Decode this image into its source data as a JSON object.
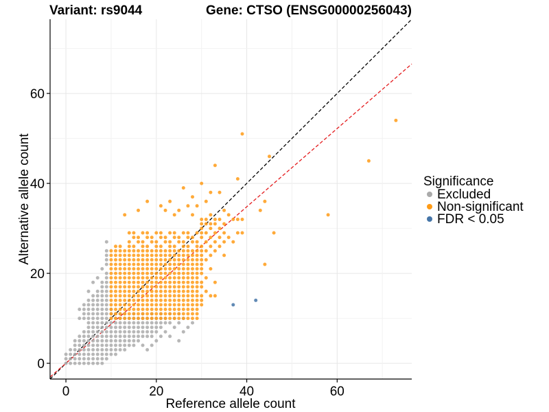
{
  "chart_data": {
    "type": "scatter",
    "title_left": "Variant: rs9044",
    "title_right": "Gene: CTSO (ENSG00000256043)",
    "xlabel": "Reference allele count",
    "ylabel": "Alternative allele count",
    "xlim": [
      -3.5,
      76.5
    ],
    "ylim": [
      -3.5,
      76.5
    ],
    "x_ticks": [
      0,
      20,
      40,
      60
    ],
    "y_ticks": [
      0,
      20,
      40,
      60
    ],
    "grid": true,
    "legend_placement": "right",
    "legend_title": "Significance",
    "reference_lines": [
      {
        "kind": "identity",
        "slope": 1,
        "intercept": 0,
        "color": "#000000",
        "style": "dashed"
      },
      {
        "kind": "fit",
        "slope": 0.87,
        "intercept": 0,
        "color": "#e41a1c",
        "style": "dashed"
      }
    ],
    "series": [
      {
        "name": "Excluded",
        "color": "#aaaaaa",
        "points": [
          [
            0,
            0
          ],
          [
            1,
            0
          ],
          [
            2,
            0
          ],
          [
            3,
            0
          ],
          [
            4,
            0
          ],
          [
            5,
            0
          ],
          [
            6,
            0
          ],
          [
            7,
            0
          ],
          [
            8,
            0
          ],
          [
            0,
            1
          ],
          [
            1,
            1
          ],
          [
            2,
            1
          ],
          [
            3,
            1
          ],
          [
            4,
            1
          ],
          [
            5,
            1
          ],
          [
            6,
            1
          ],
          [
            7,
            1
          ],
          [
            8,
            1
          ],
          [
            9,
            1
          ],
          [
            0,
            2
          ],
          [
            1,
            2
          ],
          [
            2,
            2
          ],
          [
            3,
            2
          ],
          [
            4,
            2
          ],
          [
            5,
            2
          ],
          [
            6,
            2
          ],
          [
            7,
            2
          ],
          [
            8,
            2
          ],
          [
            9,
            2
          ],
          [
            10,
            2
          ],
          [
            11,
            2
          ],
          [
            1,
            3
          ],
          [
            2,
            3
          ],
          [
            3,
            3
          ],
          [
            4,
            3
          ],
          [
            5,
            3
          ],
          [
            6,
            3
          ],
          [
            7,
            3
          ],
          [
            8,
            3
          ],
          [
            9,
            3
          ],
          [
            10,
            3
          ],
          [
            11,
            3
          ],
          [
            12,
            3
          ],
          [
            13,
            3
          ],
          [
            18,
            3
          ],
          [
            2,
            4
          ],
          [
            3,
            4
          ],
          [
            4,
            4
          ],
          [
            5,
            4
          ],
          [
            6,
            4
          ],
          [
            7,
            4
          ],
          [
            8,
            4
          ],
          [
            9,
            4
          ],
          [
            10,
            4
          ],
          [
            11,
            4
          ],
          [
            12,
            4
          ],
          [
            13,
            4
          ],
          [
            14,
            4
          ],
          [
            15,
            4
          ],
          [
            17,
            4
          ],
          [
            19,
            4
          ],
          [
            2,
            5
          ],
          [
            3,
            5
          ],
          [
            4,
            5
          ],
          [
            5,
            5
          ],
          [
            6,
            5
          ],
          [
            7,
            5
          ],
          [
            8,
            5
          ],
          [
            9,
            5
          ],
          [
            10,
            5
          ],
          [
            11,
            5
          ],
          [
            12,
            5
          ],
          [
            13,
            5
          ],
          [
            14,
            5
          ],
          [
            15,
            5
          ],
          [
            16,
            5
          ],
          [
            20,
            5
          ],
          [
            25,
            5
          ],
          [
            3,
            6
          ],
          [
            4,
            6
          ],
          [
            5,
            6
          ],
          [
            6,
            6
          ],
          [
            7,
            6
          ],
          [
            8,
            6
          ],
          [
            9,
            6
          ],
          [
            10,
            6
          ],
          [
            11,
            6
          ],
          [
            12,
            6
          ],
          [
            13,
            6
          ],
          [
            14,
            6
          ],
          [
            15,
            6
          ],
          [
            16,
            6
          ],
          [
            17,
            6
          ],
          [
            18,
            6
          ],
          [
            19,
            6
          ],
          [
            21,
            6
          ],
          [
            23,
            6
          ],
          [
            4,
            7
          ],
          [
            5,
            7
          ],
          [
            6,
            7
          ],
          [
            7,
            7
          ],
          [
            8,
            7
          ],
          [
            9,
            7
          ],
          [
            10,
            7
          ],
          [
            11,
            7
          ],
          [
            12,
            7
          ],
          [
            13,
            7
          ],
          [
            14,
            7
          ],
          [
            15,
            7
          ],
          [
            16,
            7
          ],
          [
            17,
            7
          ],
          [
            18,
            7
          ],
          [
            19,
            7
          ],
          [
            20,
            7
          ],
          [
            22,
            7
          ],
          [
            26,
            7
          ],
          [
            5,
            8
          ],
          [
            6,
            8
          ],
          [
            7,
            8
          ],
          [
            8,
            8
          ],
          [
            9,
            8
          ],
          [
            10,
            8
          ],
          [
            11,
            8
          ],
          [
            12,
            8
          ],
          [
            13,
            8
          ],
          [
            14,
            8
          ],
          [
            15,
            8
          ],
          [
            16,
            8
          ],
          [
            17,
            8
          ],
          [
            18,
            8
          ],
          [
            19,
            8
          ],
          [
            20,
            8
          ],
          [
            21,
            8
          ],
          [
            24,
            8
          ],
          [
            27,
            8
          ],
          [
            5,
            9
          ],
          [
            6,
            9
          ],
          [
            7,
            9
          ],
          [
            8,
            9
          ],
          [
            9,
            9
          ],
          [
            10,
            9
          ],
          [
            11,
            9
          ],
          [
            12,
            9
          ],
          [
            13,
            9
          ],
          [
            14,
            9
          ],
          [
            15,
            9
          ],
          [
            16,
            9
          ],
          [
            17,
            9
          ],
          [
            18,
            9
          ],
          [
            19,
            9
          ],
          [
            20,
            9
          ],
          [
            21,
            9
          ],
          [
            22,
            9
          ],
          [
            23,
            9
          ],
          [
            25,
            9
          ],
          [
            28,
            9
          ],
          [
            3,
            10
          ],
          [
            4,
            10
          ],
          [
            5,
            10
          ],
          [
            6,
            10
          ],
          [
            7,
            10
          ],
          [
            8,
            10
          ],
          [
            9,
            10
          ],
          [
            10,
            10
          ],
          [
            11,
            10
          ],
          [
            12,
            10
          ],
          [
            13,
            10
          ],
          [
            14,
            10
          ],
          [
            15,
            10
          ],
          [
            16,
            10
          ],
          [
            17,
            10
          ],
          [
            18,
            10
          ],
          [
            19,
            10
          ],
          [
            20,
            10
          ],
          [
            21,
            10
          ],
          [
            22,
            10
          ],
          [
            24,
            10
          ],
          [
            26,
            10
          ],
          [
            4,
            11
          ],
          [
            5,
            11
          ],
          [
            6,
            11
          ],
          [
            7,
            11
          ],
          [
            8,
            11
          ],
          [
            9,
            11
          ],
          [
            10,
            11
          ],
          [
            11,
            11
          ],
          [
            12,
            11
          ],
          [
            13,
            11
          ],
          [
            15,
            11
          ],
          [
            17,
            11
          ],
          [
            19,
            11
          ],
          [
            21,
            11
          ],
          [
            23,
            11
          ],
          [
            25,
            11
          ],
          [
            3,
            12
          ],
          [
            4,
            12
          ],
          [
            5,
            12
          ],
          [
            6,
            12
          ],
          [
            7,
            12
          ],
          [
            8,
            12
          ],
          [
            9,
            12
          ],
          [
            10,
            12
          ],
          [
            4,
            13
          ],
          [
            5,
            13
          ],
          [
            6,
            13
          ],
          [
            7,
            13
          ],
          [
            8,
            13
          ],
          [
            9,
            13
          ],
          [
            5,
            14
          ],
          [
            6,
            14
          ],
          [
            7,
            14
          ],
          [
            8,
            14
          ],
          [
            9,
            14
          ],
          [
            6,
            15
          ],
          [
            7,
            15
          ],
          [
            8,
            15
          ],
          [
            9,
            15
          ],
          [
            5,
            16
          ],
          [
            7,
            16
          ],
          [
            8,
            16
          ],
          [
            9,
            16
          ],
          [
            8,
            17
          ],
          [
            9,
            17
          ],
          [
            6,
            18
          ],
          [
            8,
            18
          ],
          [
            9,
            18
          ],
          [
            7,
            19
          ],
          [
            9,
            19
          ],
          [
            9,
            20
          ],
          [
            8,
            21
          ],
          [
            9,
            22
          ],
          [
            9,
            23
          ],
          [
            9,
            24
          ],
          [
            9,
            25
          ],
          [
            9,
            27
          ]
        ]
      },
      {
        "name": "Non-significant",
        "color": "#ff9b16",
        "points": [],
        "grid_block": {
          "x_min": 10,
          "x_max": 29,
          "y_min": 10,
          "y_max": 29
        },
        "extra_points": [
          [
            39,
            51
          ],
          [
            45,
            46
          ],
          [
            33,
            44
          ],
          [
            38,
            41
          ],
          [
            30,
            40
          ],
          [
            26,
            39
          ],
          [
            32,
            38
          ],
          [
            34,
            38
          ],
          [
            28,
            37
          ],
          [
            18,
            36
          ],
          [
            23,
            36
          ],
          [
            31,
            36
          ],
          [
            21,
            35
          ],
          [
            27,
            35
          ],
          [
            29,
            35
          ],
          [
            16,
            34
          ],
          [
            22,
            34
          ],
          [
            25,
            34
          ],
          [
            35,
            34
          ],
          [
            43,
            34
          ],
          [
            44,
            36
          ],
          [
            13,
            33
          ],
          [
            24,
            33
          ],
          [
            28,
            33
          ],
          [
            32,
            33
          ],
          [
            36,
            33
          ],
          [
            30,
            32
          ],
          [
            31,
            32
          ],
          [
            33,
            32
          ],
          [
            34,
            32
          ],
          [
            37,
            32
          ],
          [
            38,
            32
          ],
          [
            39,
            32
          ],
          [
            30,
            31
          ],
          [
            31,
            31
          ],
          [
            32,
            31
          ],
          [
            33,
            31
          ],
          [
            35,
            31
          ],
          [
            30,
            30
          ],
          [
            32,
            30
          ],
          [
            34,
            30
          ],
          [
            30,
            29
          ],
          [
            31,
            29
          ],
          [
            33,
            29
          ],
          [
            35,
            29
          ],
          [
            38,
            29
          ],
          [
            39,
            29
          ],
          [
            46,
            29
          ],
          [
            30,
            28
          ],
          [
            32,
            28
          ],
          [
            34,
            28
          ],
          [
            36,
            28
          ],
          [
            31,
            27
          ],
          [
            33,
            27
          ],
          [
            35,
            27
          ],
          [
            37,
            27
          ],
          [
            30,
            26
          ],
          [
            32,
            26
          ],
          [
            34,
            26
          ],
          [
            30,
            25
          ],
          [
            31,
            25
          ],
          [
            33,
            25
          ],
          [
            30,
            24
          ],
          [
            32,
            24
          ],
          [
            35,
            24
          ],
          [
            30,
            23
          ],
          [
            31,
            23
          ],
          [
            30,
            22
          ],
          [
            44,
            22
          ],
          [
            30,
            21
          ],
          [
            32,
            21
          ],
          [
            30,
            20
          ],
          [
            31,
            19
          ],
          [
            30,
            18
          ],
          [
            33,
            18
          ],
          [
            30,
            17
          ],
          [
            31,
            16
          ],
          [
            30,
            15
          ],
          [
            32,
            15
          ],
          [
            30,
            14
          ],
          [
            30,
            13
          ],
          [
            33,
            15
          ],
          [
            58,
            33
          ],
          [
            67,
            45
          ],
          [
            73,
            54
          ]
        ]
      },
      {
        "name": "FDR < 0.05",
        "color": "#4575a8",
        "points": [
          [
            37,
            13
          ],
          [
            42,
            14
          ]
        ]
      }
    ]
  }
}
